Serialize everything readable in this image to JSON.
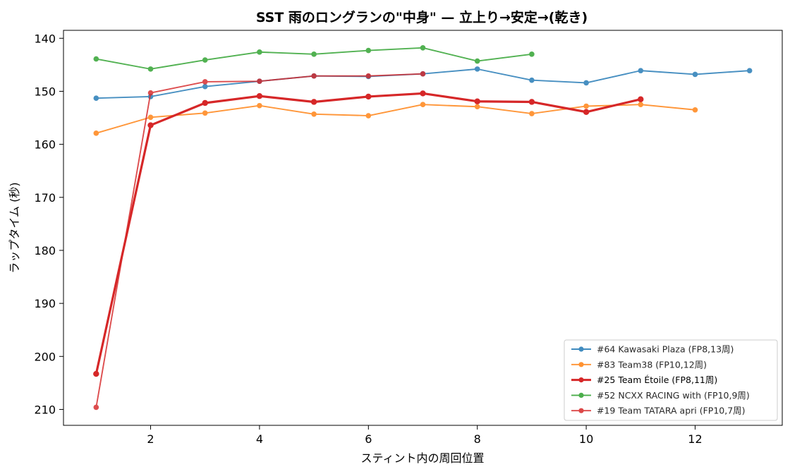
{
  "chart_data": {
    "type": "line",
    "title": "SST 雨のロングランの\"中身\" — 立上り→安定→(乾き)",
    "xlabel": "スティント内の周回位置",
    "ylabel": "ラップタイム (秒)",
    "xlim": [
      0.4,
      13.6
    ],
    "ylim": [
      213,
      138.5
    ],
    "y_inverted": true,
    "xticks": [
      2,
      4,
      6,
      8,
      10,
      12
    ],
    "yticks": [
      140,
      150,
      160,
      170,
      180,
      190,
      200,
      210
    ],
    "grid": false,
    "legend_position": "lower-right",
    "series": [
      {
        "name": "#64 Kawasaki Plaza (FP8,13周)",
        "color": "#1f77b4",
        "emphasis": false,
        "x": [
          1,
          2,
          3,
          4,
          5,
          6,
          7,
          8,
          9,
          10,
          11,
          12,
          13
        ],
        "y": [
          151.3,
          151.0,
          149.1,
          148.1,
          147.1,
          147.2,
          146.7,
          145.8,
          147.9,
          148.4,
          146.1,
          146.8,
          146.1
        ]
      },
      {
        "name": "#83 Team38 (FP10,12周)",
        "color": "#ff7f0e",
        "emphasis": false,
        "x": [
          1,
          2,
          3,
          4,
          5,
          6,
          7,
          8,
          9,
          10,
          11,
          12
        ],
        "y": [
          157.9,
          154.9,
          154.1,
          152.7,
          154.3,
          154.6,
          152.5,
          152.9,
          154.2,
          152.8,
          152.5,
          153.5
        ]
      },
      {
        "name": "#25 Team Étoile (FP8,11周)",
        "color": "#d62728",
        "emphasis": true,
        "x": [
          1,
          2,
          3,
          4,
          5,
          6,
          7,
          8,
          9,
          10,
          11
        ],
        "y": [
          203.3,
          156.4,
          152.2,
          150.9,
          152.0,
          151.0,
          150.4,
          151.9,
          152.0,
          153.9,
          151.5
        ]
      },
      {
        "name": "#52 NCXX RACING with (FP10,9周)",
        "color": "#2ca02c",
        "emphasis": false,
        "x": [
          1,
          2,
          3,
          4,
          5,
          6,
          7,
          8,
          9
        ],
        "y": [
          143.9,
          145.8,
          144.1,
          142.6,
          143.0,
          142.3,
          141.8,
          144.3,
          143.0
        ]
      },
      {
        "name": "#19 Team TATARA apri (FP10,7周)",
        "color": "#d62728",
        "emphasis": false,
        "x": [
          1,
          2,
          3,
          4,
          5,
          6,
          7
        ],
        "y": [
          209.6,
          150.3,
          148.2,
          148.1,
          147.1,
          147.1,
          146.7
        ]
      }
    ]
  }
}
